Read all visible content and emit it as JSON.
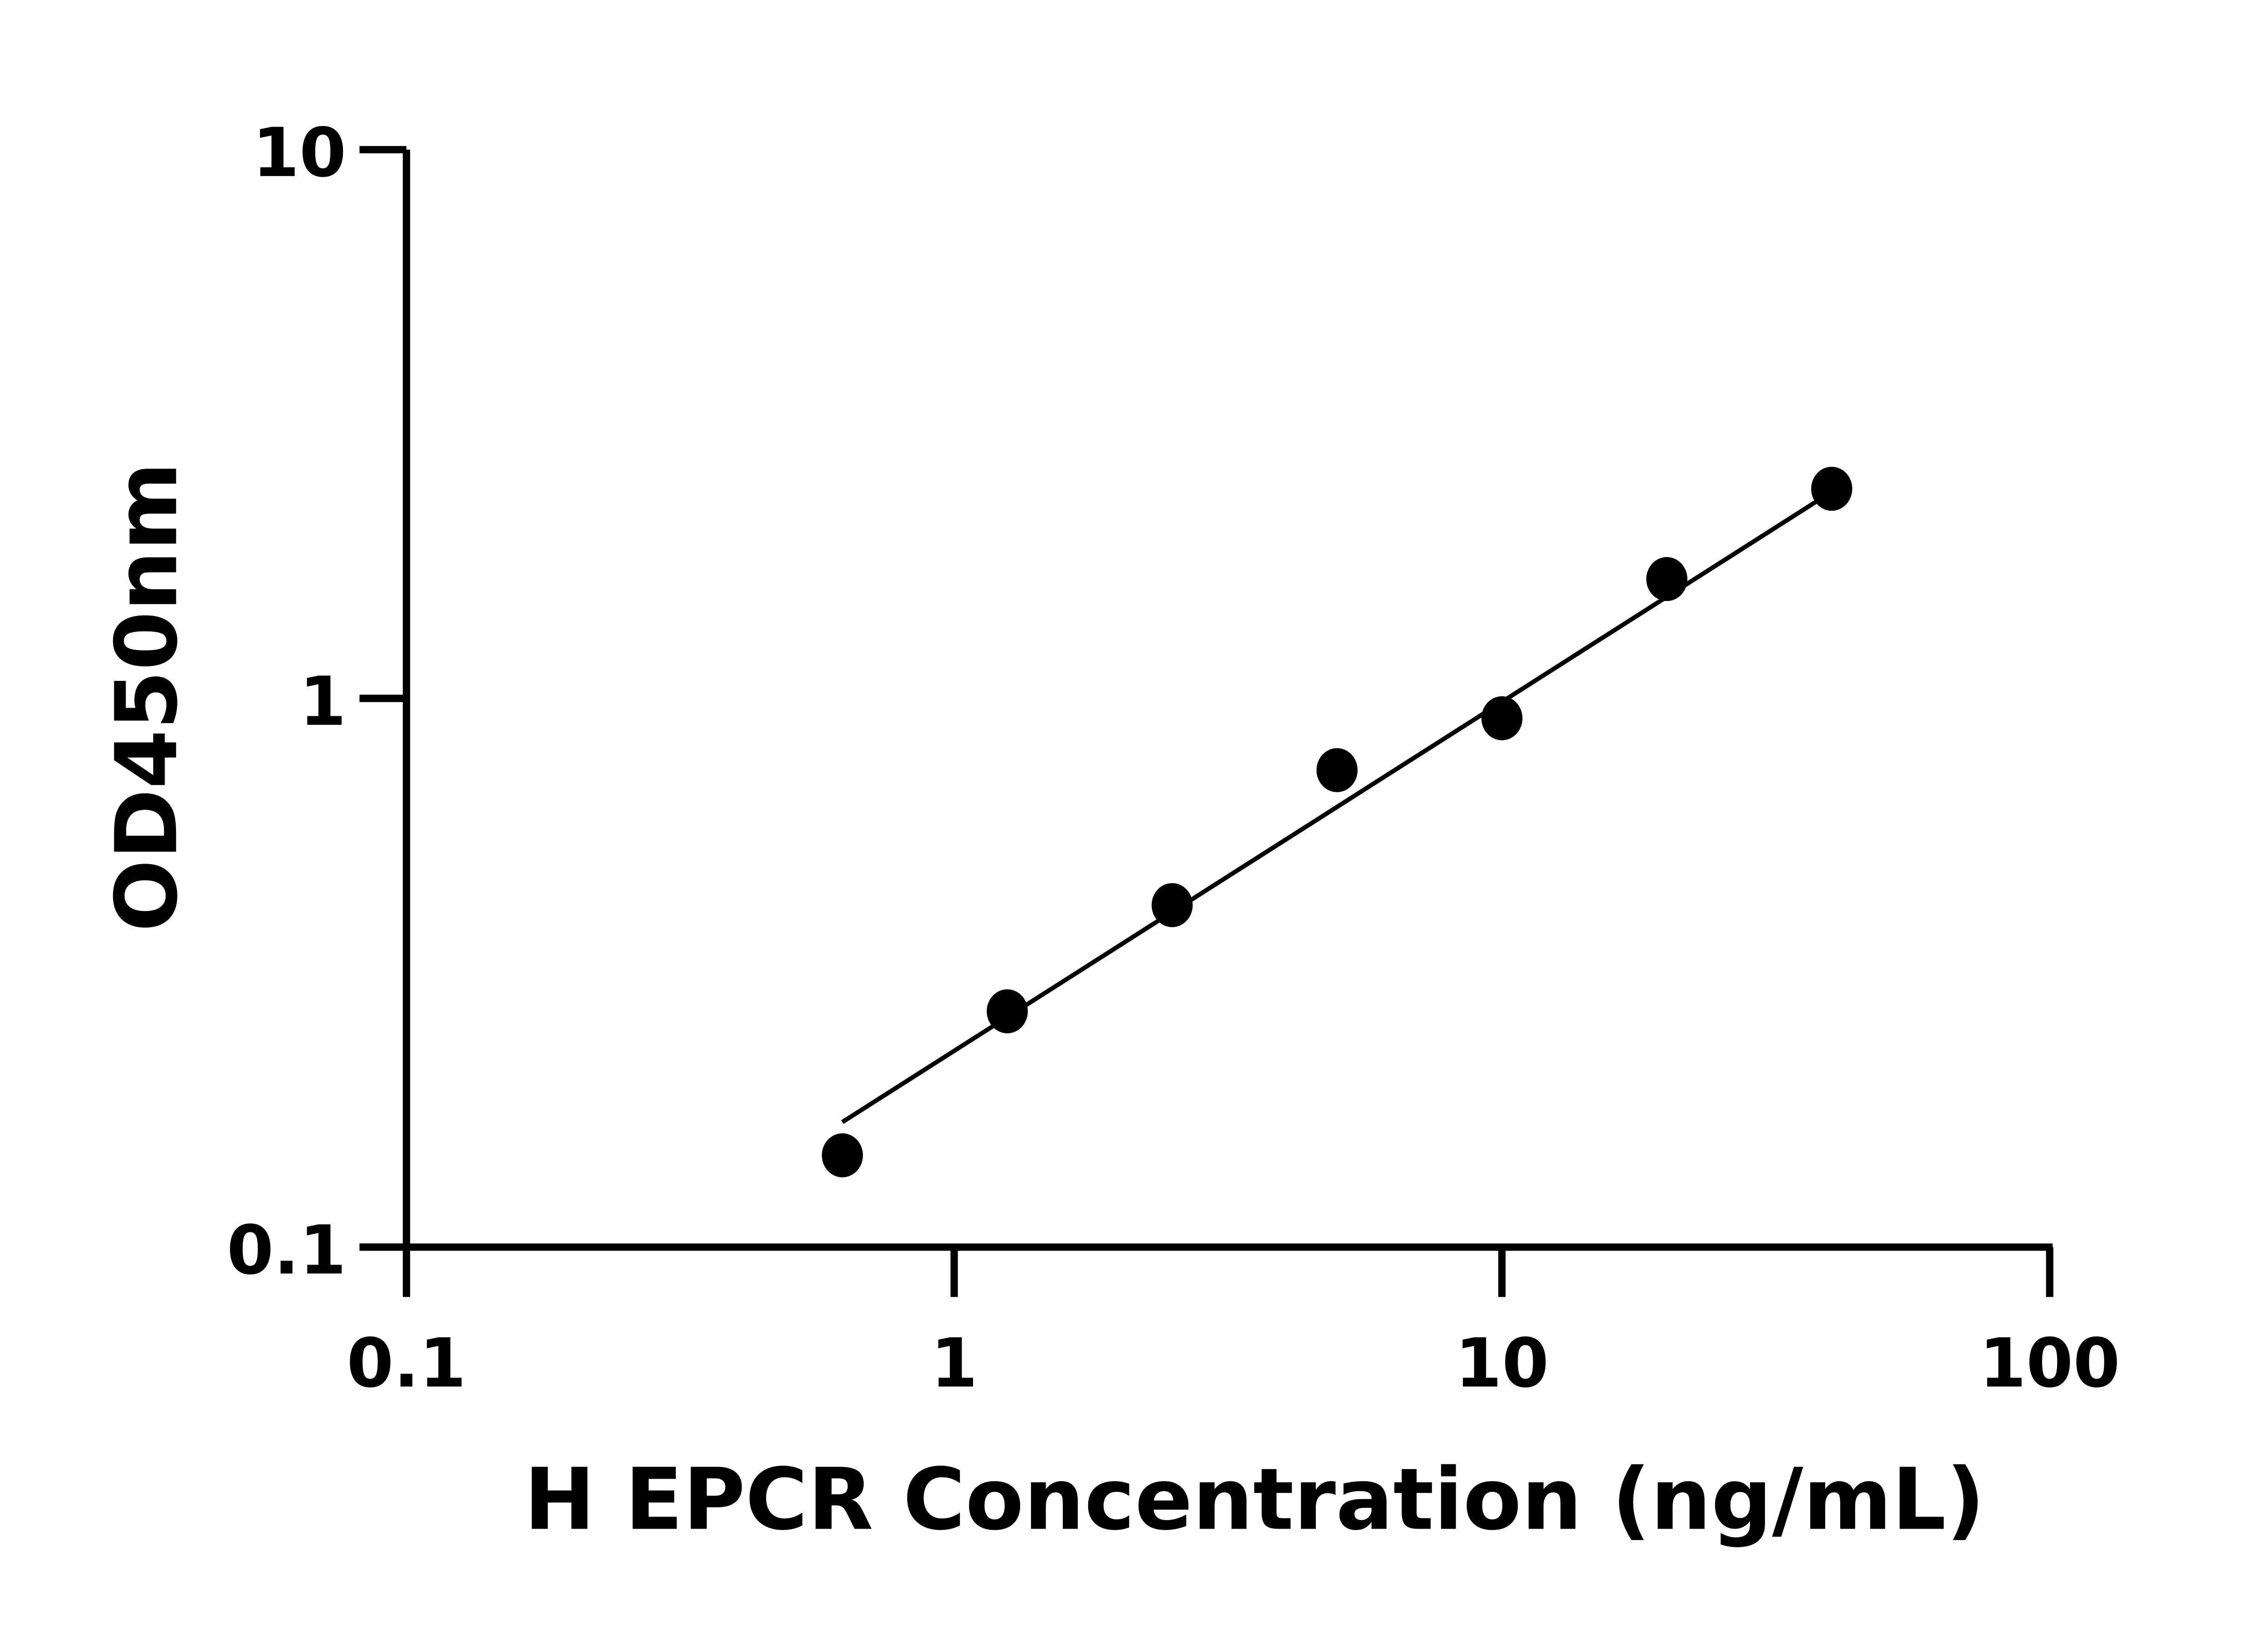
{
  "chart_data": {
    "type": "scatter",
    "title": "",
    "xlabel": "H EPCR Concentration (ng/mL)",
    "ylabel": "OD450nm",
    "x_scale": "log",
    "y_scale": "log",
    "xlim": [
      0.1,
      100
    ],
    "ylim": [
      0.1,
      10
    ],
    "x_ticks": [
      "0.1",
      "1",
      "10",
      "100"
    ],
    "y_ticks": [
      "0.1",
      "1",
      "10"
    ],
    "grid": false,
    "legend": "none",
    "points": {
      "x": [
        0.625,
        1.25,
        2.5,
        5,
        10,
        20,
        40
      ],
      "y": [
        0.147,
        0.269,
        0.42,
        0.74,
        0.92,
        1.65,
        2.41
      ]
    },
    "fit_line": {
      "x": [
        0.625,
        40
      ],
      "y": [
        0.169,
        2.38
      ]
    },
    "colors": {
      "points": "#000000",
      "line": "#000000",
      "axes": "#000000"
    }
  }
}
